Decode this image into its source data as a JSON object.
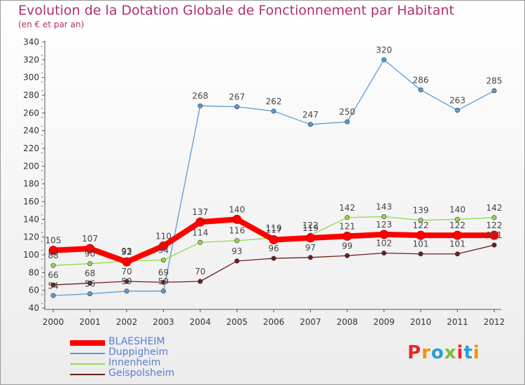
{
  "header": {
    "title": "Evolution de la Dotation Globale de Fonctionnement par Habitant",
    "subtitle": "(en € et par an)"
  },
  "logo": {
    "text": "Proxiti",
    "colors": [
      "#e8262b",
      "#f39200",
      "#2a9fd6",
      "#7bbd3b",
      "#e8262b",
      "#2a9fd6",
      "#f39200"
    ]
  },
  "chart_data": {
    "type": "line",
    "title": "Evolution de la Dotation Globale de Fonctionnement par Habitant",
    "subtitle": "(en € et par an)",
    "x": [
      2000,
      2001,
      2002,
      2003,
      2004,
      2005,
      2006,
      2007,
      2008,
      2009,
      2010,
      2011,
      2012
    ],
    "ylim": [
      40,
      340
    ],
    "yticks": [
      40,
      60,
      80,
      100,
      120,
      140,
      160,
      180,
      200,
      220,
      240,
      260,
      280,
      300,
      320,
      340
    ],
    "grid": false,
    "legend": "bottom-left",
    "series": [
      {
        "name": "BLAESHEIM",
        "color": "#ff0000",
        "values": [
          105,
          107,
          92,
          110,
          137,
          140,
          117,
          119,
          121,
          123,
          122,
          122,
          122
        ]
      },
      {
        "name": "Duppigheim",
        "color": "#5b9bd5",
        "values": [
          54,
          56,
          59,
          59,
          268,
          267,
          262,
          247,
          250,
          320,
          286,
          263,
          285
        ]
      },
      {
        "name": "Innenheim",
        "color": "#8fd94f",
        "values": [
          88,
          90,
          93,
          94,
          114,
          116,
          119,
          122,
          142,
          143,
          139,
          140,
          142
        ]
      },
      {
        "name": "Geispolsheim",
        "color": "#6b1f1f",
        "values": [
          66,
          68,
          70,
          69,
          70,
          93,
          96,
          97,
          99,
          102,
          101,
          101,
          111
        ]
      }
    ]
  }
}
